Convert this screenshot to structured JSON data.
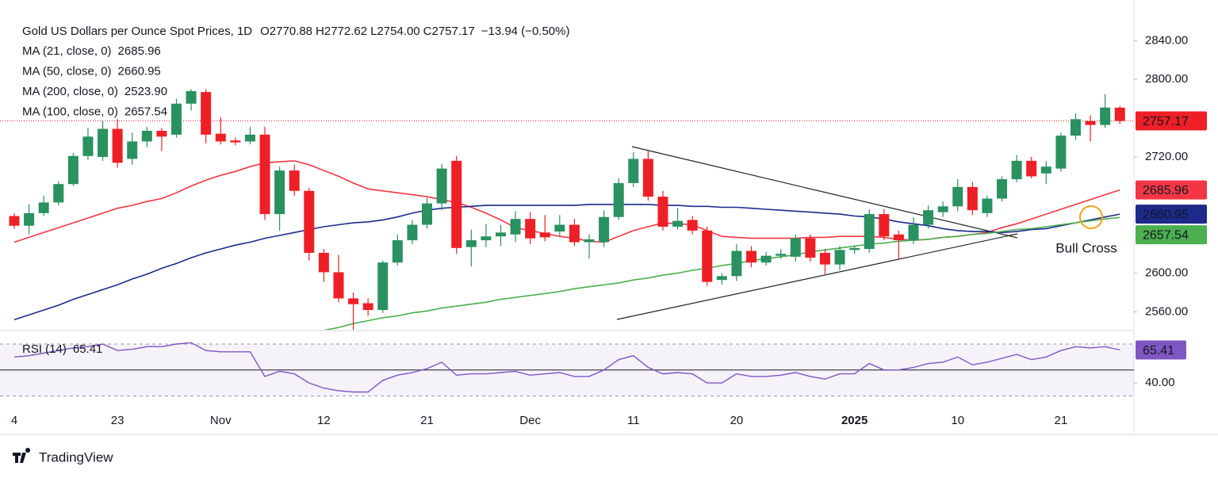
{
  "chart_data": {
    "type": "candlestick",
    "title": "Gold US Dollars per Ounce Spot Prices, 1D",
    "ohlc_labels": [
      "O2770.88",
      "H2772.62",
      "L2754.00",
      "C2757.17"
    ],
    "change_label": "−13.94 (−0.50%)",
    "categories": [
      "4",
      null,
      null,
      null,
      null,
      null,
      null,
      "23",
      null,
      null,
      null,
      null,
      null,
      null,
      "Nov",
      null,
      null,
      null,
      null,
      null,
      null,
      "12",
      null,
      null,
      null,
      null,
      null,
      null,
      "21",
      null,
      null,
      null,
      null,
      null,
      null,
      "Dec",
      null,
      null,
      null,
      null,
      null,
      null,
      "11",
      null,
      null,
      null,
      null,
      null,
      null,
      "20",
      null,
      null,
      null,
      null,
      null,
      null,
      null,
      "2025",
      null,
      null,
      null,
      null,
      null,
      null,
      "10",
      null,
      null,
      null,
      null,
      null,
      null,
      "21",
      null,
      null,
      null,
      null
    ],
    "open": [
      2659,
      2649,
      2662,
      2673,
      2692,
      2721,
      2720,
      2749,
      2718,
      2736,
      2747,
      2743,
      2775,
      2787,
      2744,
      2737,
      2736,
      2743,
      2661,
      2706,
      2685,
      2621,
      2601,
      2574,
      2569,
      2562,
      2611,
      2634,
      2650,
      2672,
      2716,
      2627,
      2634,
      2638,
      2640,
      2656,
      2642,
      2643,
      2650,
      2632,
      2632,
      2658,
      2693,
      2718,
      2679,
      2648,
      2655,
      2644,
      2593,
      2597,
      2623,
      2611,
      2618,
      2617,
      2636,
      2621,
      2609,
      2624,
      2625,
      2661,
      2640,
      2634,
      2650,
      2663,
      2669,
      2689,
      2662,
      2677,
      2697,
      2716,
      2703,
      2708,
      2742,
      2757,
      2753,
      2770.88
    ],
    "high": [
      2662,
      2671,
      2680,
      2695,
      2724,
      2750,
      2758,
      2759,
      2745,
      2751,
      2750,
      2780,
      2790,
      2790,
      2761,
      2740,
      2751,
      2751,
      2710,
      2712,
      2688,
      2625,
      2619,
      2580,
      2574,
      2613,
      2640,
      2655,
      2678,
      2713,
      2721,
      2645,
      2651,
      2650,
      2664,
      2663,
      2660,
      2660,
      2656,
      2640,
      2665,
      2698,
      2725,
      2726,
      2685,
      2667,
      2659,
      2648,
      2600,
      2630,
      2628,
      2622,
      2625,
      2640,
      2640,
      2625,
      2628,
      2628,
      2666,
      2666,
      2644,
      2658,
      2670,
      2674,
      2697,
      2694,
      2680,
      2700,
      2722,
      2720,
      2716,
      2745,
      2765,
      2763,
      2785,
      2772.62
    ],
    "low": [
      2646,
      2640,
      2659,
      2670,
      2690,
      2717,
      2716,
      2709,
      2712,
      2730,
      2726,
      2740,
      2768,
      2734,
      2733,
      2732,
      2733,
      2655,
      2644,
      2680,
      2613,
      2591,
      2570,
      2541,
      2556,
      2559,
      2608,
      2630,
      2646,
      2665,
      2620,
      2607,
      2627,
      2628,
      2632,
      2630,
      2633,
      2638,
      2628,
      2615,
      2627,
      2655,
      2689,
      2675,
      2644,
      2645,
      2640,
      2587,
      2588,
      2592,
      2606,
      2608,
      2615,
      2612,
      2612,
      2599,
      2603,
      2620,
      2621,
      2634,
      2615,
      2630,
      2646,
      2658,
      2664,
      2660,
      2658,
      2674,
      2694,
      2698,
      2692,
      2705,
      2738,
      2736,
      2750,
      2754
    ],
    "close": [
      2649,
      2662,
      2673,
      2692,
      2721,
      2741,
      2749,
      2714,
      2736,
      2747,
      2741,
      2775,
      2788,
      2743,
      2736,
      2735,
      2743,
      2661,
      2706,
      2685,
      2621,
      2601,
      2574,
      2568,
      2562,
      2611,
      2634,
      2650,
      2672,
      2708,
      2626,
      2634,
      2638,
      2642,
      2656,
      2636,
      2637,
      2650,
      2632,
      2635,
      2658,
      2693,
      2718,
      2679,
      2648,
      2654,
      2644,
      2591,
      2597,
      2623,
      2611,
      2618,
      2620,
      2636,
      2616,
      2609,
      2624,
      2626,
      2661,
      2638,
      2634,
      2650,
      2665,
      2669,
      2689,
      2665,
      2677,
      2697,
      2716,
      2700,
      2710,
      2742,
      2759,
      2753,
      2771,
      2757.17
    ],
    "up_color": "#2a9160",
    "down_color": "#ef1f27",
    "ylim": [
      2541.6,
      2882
    ],
    "yticks": [
      {
        "value": 2560,
        "label": "2560.00"
      },
      {
        "value": 2600,
        "label": "2600.00"
      },
      {
        "value": 2720,
        "label": "2720.00"
      },
      {
        "value": 2800,
        "label": "2800.00"
      },
      {
        "value": 2840,
        "label": "2840.00"
      }
    ],
    "series": [
      {
        "name": "MA (21, close, 0)",
        "color": "#f23645",
        "values": [
          2632,
          2637,
          2642,
          2647,
          2652,
          2657,
          2662,
          2667,
          2670,
          2674,
          2677,
          2683,
          2690,
          2696,
          2701,
          2705,
          2710,
          2714,
          2715,
          2716,
          2712,
          2706,
          2700,
          2693,
          2687,
          2685,
          2683,
          2681,
          2679,
          2676,
          2673,
          2668,
          2662,
          2655,
          2647,
          2644,
          2641,
          2638,
          2636,
          2633,
          2632,
          2638,
          2644,
          2648,
          2652,
          2651,
          2650,
          2644,
          2638,
          2637,
          2636,
          2636,
          2636,
          2636,
          2637,
          2637,
          2638,
          2638,
          2638,
          2637,
          2635,
          2634,
          2635,
          2637,
          2638,
          2640,
          2642,
          2647,
          2651,
          2656,
          2661,
          2666,
          2671,
          2676,
          2681,
          2685.96
        ]
      },
      {
        "name": "MA (50, close, 0)",
        "color": "#1c2a8a",
        "values": [
          2552,
          2557,
          2562,
          2567,
          2573,
          2578,
          2583,
          2588,
          2594,
          2599,
          2605,
          2610,
          2616,
          2621,
          2625,
          2629,
          2632,
          2636,
          2639,
          2642,
          2645,
          2648,
          2650,
          2652,
          2653,
          2655,
          2658,
          2662,
          2665,
          2667,
          2668,
          2669,
          2670,
          2670,
          2670,
          2670,
          2670,
          2670,
          2670,
          2671,
          2671,
          2671,
          2671,
          2671,
          2670,
          2670,
          2669,
          2669,
          2668,
          2668,
          2667,
          2666,
          2665,
          2664,
          2663,
          2662,
          2661,
          2659,
          2658,
          2656,
          2653,
          2651,
          2649,
          2646,
          2644,
          2643,
          2643,
          2642,
          2643,
          2645,
          2646,
          2649,
          2652,
          2655,
          2658,
          2660.95
        ]
      },
      {
        "name": "MA (200, close, 0)",
        "color": "#f48fb1",
        "last": 2523.9,
        "last_label": "2523.90"
      },
      {
        "name": "MA (100, close, 0)",
        "color": "#4caf50",
        "values": [
          null,
          null,
          null,
          null,
          null,
          null,
          null,
          null,
          null,
          null,
          null,
          null,
          null,
          null,
          null,
          null,
          null,
          null,
          null,
          null,
          null,
          2541,
          2544,
          2548,
          2551,
          2554,
          2556,
          2559,
          2561,
          2564,
          2566,
          2568,
          2570,
          2573,
          2575,
          2577,
          2579,
          2581,
          2584,
          2586,
          2588,
          2590,
          2593,
          2595,
          2598,
          2600,
          2603,
          2605,
          2608,
          2610,
          2613,
          2615,
          2617,
          2619,
          2622,
          2624,
          2626,
          2628,
          2630,
          2631,
          2633,
          2634,
          2635,
          2637,
          2638,
          2640,
          2641,
          2643,
          2645,
          2646,
          2648,
          2650,
          2652,
          2654,
          2656,
          2657.54
        ]
      }
    ],
    "annotation": "Bull Cross",
    "annotation_color": "#f5a21b",
    "rsi": {
      "name": "RSI (14)",
      "color": "#7e57c2",
      "values": [
        60,
        61,
        63,
        65,
        67,
        68,
        70,
        65,
        66,
        68,
        68,
        70,
        71,
        65,
        64,
        64,
        64,
        45,
        49,
        47,
        40,
        36,
        34,
        33,
        33,
        42,
        46,
        48,
        51,
        56,
        46,
        47,
        47,
        48,
        49,
        46,
        47,
        48,
        45,
        45,
        50,
        58,
        61,
        52,
        47,
        48,
        47,
        40,
        40,
        47,
        45,
        45,
        46,
        48,
        45,
        43,
        47,
        47,
        55,
        50,
        50,
        52,
        55,
        56,
        60,
        54,
        56,
        59,
        62,
        58,
        60,
        65,
        68,
        67,
        68,
        65.41
      ],
      "ylim": [
        26.6,
        79.8
      ],
      "yticks": [
        {
          "value": 40,
          "label": "40.00"
        }
      ],
      "levels": [
        30,
        50,
        70
      ]
    }
  },
  "brand": "TradingView"
}
